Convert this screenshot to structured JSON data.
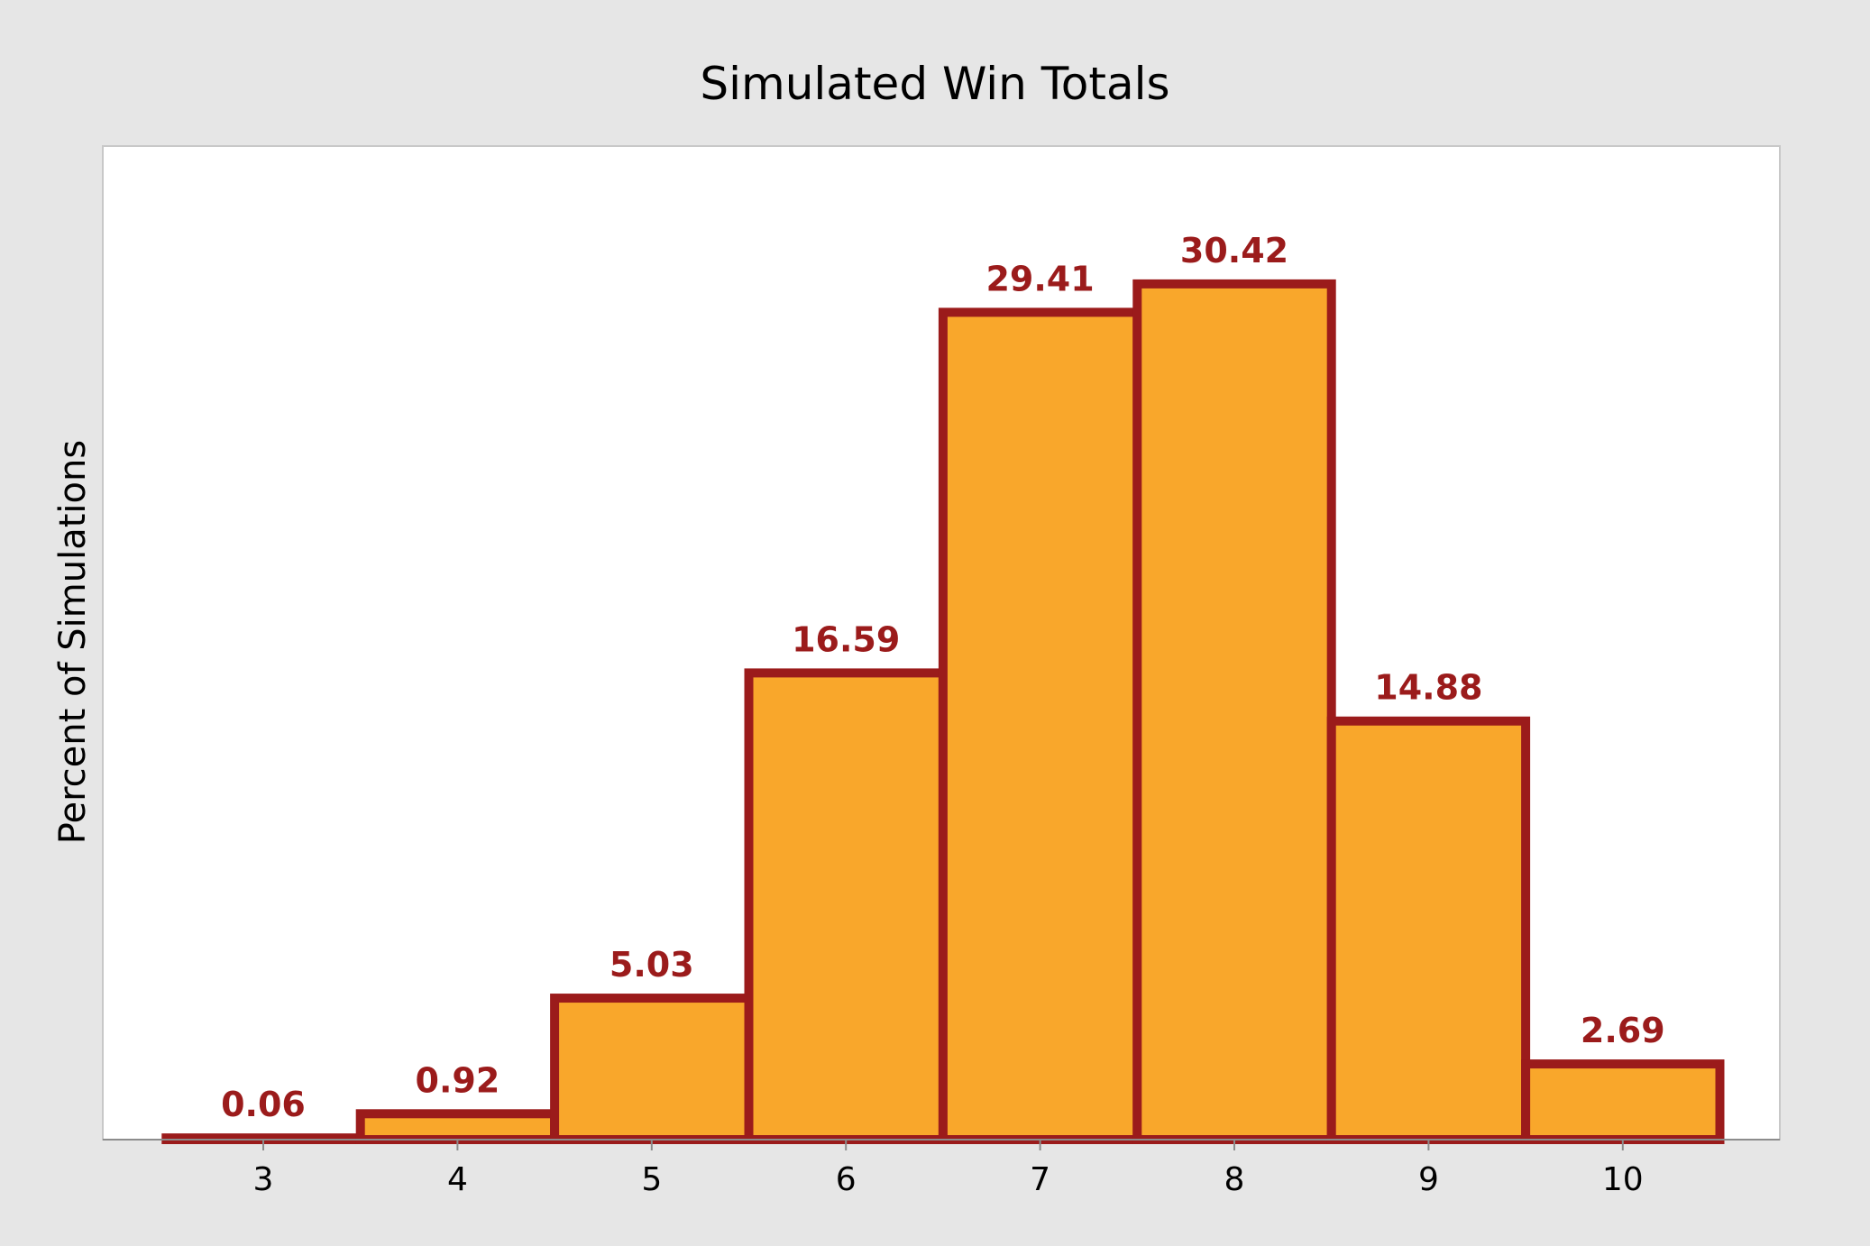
{
  "chart_data": {
    "type": "bar",
    "title": "Simulated Win Totals",
    "xlabel": "",
    "ylabel": "Percent of Simulations",
    "categories": [
      "3",
      "4",
      "5",
      "6",
      "7",
      "8",
      "9",
      "10"
    ],
    "values": [
      0.06,
      0.92,
      5.03,
      16.59,
      29.41,
      30.42,
      14.88,
      2.69
    ],
    "data_labels": [
      "0.06",
      "0.92",
      "5.03",
      "16.59",
      "29.41",
      "30.42",
      "14.88",
      "2.69"
    ],
    "ylim": [
      0,
      32.8
    ],
    "grid": false,
    "legend": "none",
    "colors": {
      "bar_fill": "#f9a72b",
      "bar_edge": "#9b1b1b",
      "label": "#9b1b1b",
      "plot_bg": "#ffffff",
      "page_bg": "#e6e6e6"
    }
  }
}
